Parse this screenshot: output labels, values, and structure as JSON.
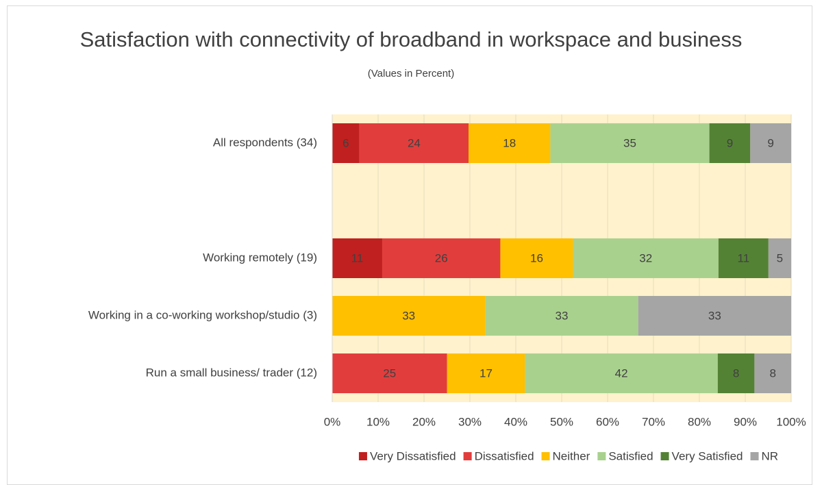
{
  "chart_data": {
    "type": "bar",
    "orientation": "horizontal",
    "stacking": "percent",
    "title": "Satisfaction with connectivity of broadband in workspace and business",
    "subtitle": "(Values in Percent)",
    "categories": [
      "All respondents (34)",
      null,
      "Working remotely  (19)",
      "Working in a co-working workshop/studio (3)",
      "Run a small business/ trader (12)"
    ],
    "series": [
      {
        "name": "Very Dissatisfied",
        "color": "#c0201f",
        "values": [
          6,
          null,
          11,
          null,
          null
        ]
      },
      {
        "name": "Dissatisfied",
        "color": "#e23d3d",
        "values": [
          24,
          null,
          26,
          null,
          25
        ]
      },
      {
        "name": "Neither",
        "color": "#ffc000",
        "values": [
          18,
          null,
          16,
          33,
          17
        ]
      },
      {
        "name": "Satisfied",
        "color": "#a9d18e",
        "values": [
          35,
          null,
          32,
          33,
          42
        ]
      },
      {
        "name": "Very Satisfied",
        "color": "#548235",
        "values": [
          9,
          null,
          11,
          null,
          8
        ]
      },
      {
        "name": "NR",
        "color": "#a5a5a5",
        "values": [
          9,
          null,
          5,
          33,
          8
        ]
      }
    ],
    "xlim": [
      0,
      100
    ],
    "xticks": [
      {
        "value": 0,
        "label": "0%"
      },
      {
        "value": 10,
        "label": "10%"
      },
      {
        "value": 20,
        "label": "20%"
      },
      {
        "value": 30,
        "label": "30%"
      },
      {
        "value": 40,
        "label": "40%"
      },
      {
        "value": 50,
        "label": "50%"
      },
      {
        "value": 60,
        "label": "60%"
      },
      {
        "value": 70,
        "label": "70%"
      },
      {
        "value": 80,
        "label": "80%"
      },
      {
        "value": 90,
        "label": "90%"
      },
      {
        "value": 100,
        "label": "100%"
      }
    ],
    "grid": true,
    "legend": "bottom"
  }
}
